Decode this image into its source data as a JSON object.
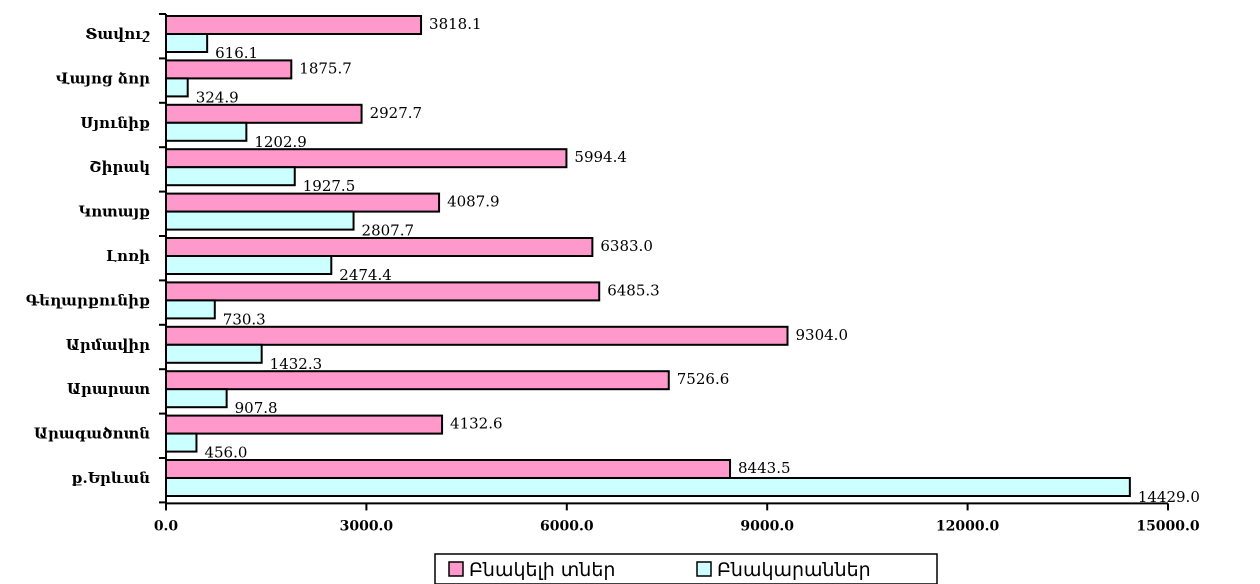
{
  "chart_data": {
    "type": "bar",
    "orientation": "horizontal",
    "categories": [
      "Տավուշ",
      "Վայոց ձոր",
      "Սյունիք",
      "Շիրակ",
      "Կոտայք",
      "Լոռի",
      "Գեղարքունիք",
      "Արմավիր",
      "Արարատ",
      "Արագածոտն",
      "ք.Երևան"
    ],
    "series": [
      {
        "name": "Բնակելի տներ",
        "color": "#ff99cc",
        "values": [
          3818.1,
          1875.7,
          2927.7,
          5994.4,
          4087.9,
          6383.0,
          6485.3,
          9304.0,
          7526.6,
          4132.6,
          8443.5
        ],
        "labels": [
          "3818.1",
          "1875.7",
          "2927.7",
          "5994.4",
          "4087.9",
          "6383.0",
          "6485.3",
          "9304.0",
          "7526.6",
          "4132.6",
          "8443.5"
        ]
      },
      {
        "name": "Բնակարաններ",
        "color": "#ccffff",
        "values": [
          616.1,
          324.9,
          1202.9,
          1927.5,
          2807.7,
          2474.4,
          730.3,
          1432.3,
          907.8,
          456.0,
          14429.0
        ],
        "labels": [
          "616.1",
          "324.9",
          "1202.9",
          "1927.5",
          "2807.7",
          "2474.4",
          "730.3",
          "1432.3",
          "907.8",
          "456.0",
          "14429.0"
        ]
      }
    ],
    "xlim": [
      0,
      15000
    ],
    "xticks": [
      0,
      3000,
      6000,
      9000,
      12000,
      15000
    ],
    "xtick_labels": [
      "0.0",
      "3000.0",
      "6000.0",
      "9000.0",
      "12000.0",
      "15000.0"
    ],
    "grid": false,
    "legend_position": "bottom-center"
  }
}
